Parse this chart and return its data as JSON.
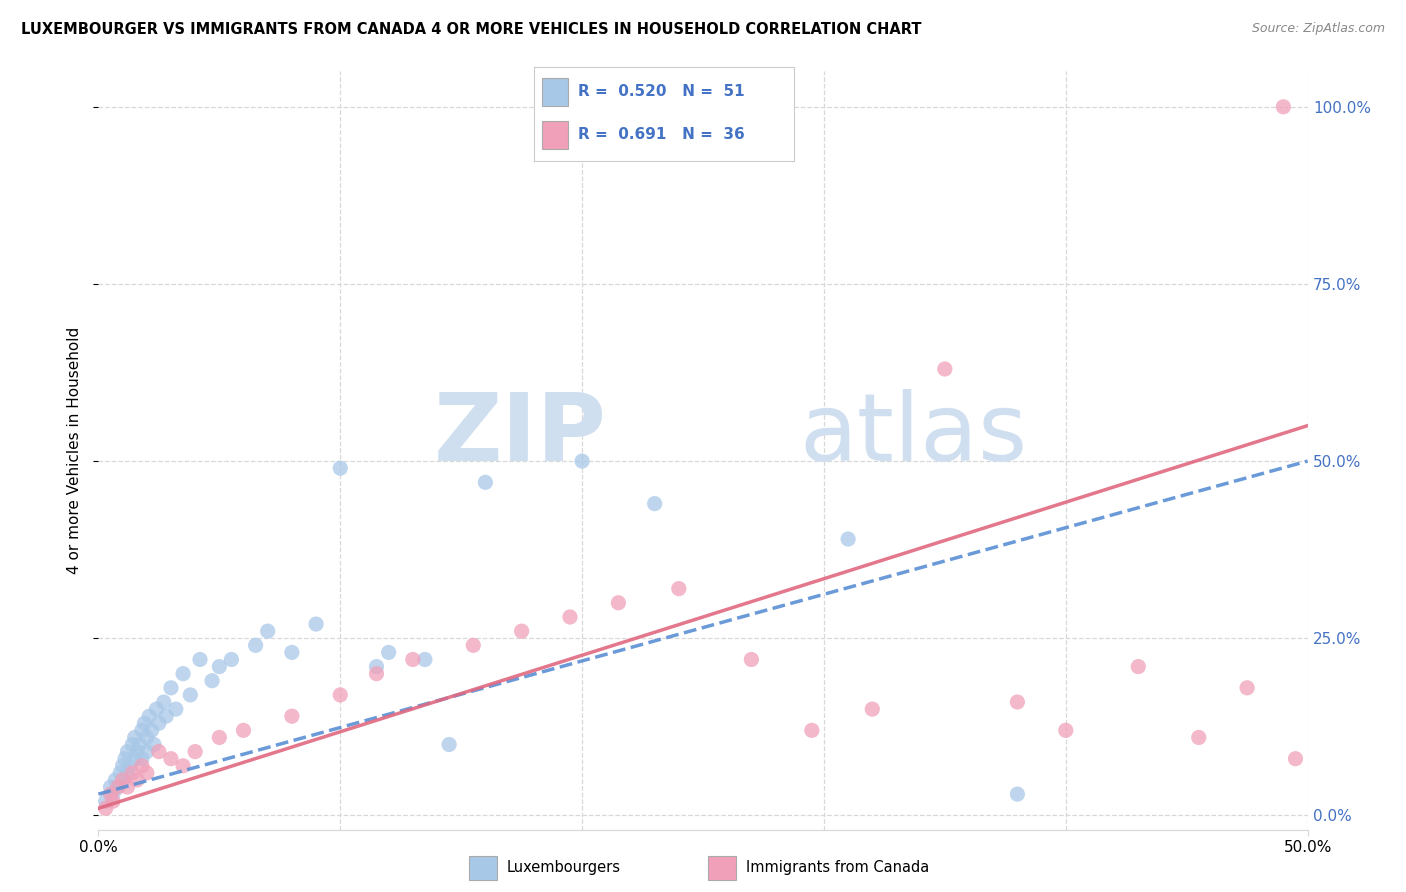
{
  "title": "LUXEMBOURGER VS IMMIGRANTS FROM CANADA 4 OR MORE VEHICLES IN HOUSEHOLD CORRELATION CHART",
  "source": "Source: ZipAtlas.com",
  "ylabel": "4 or more Vehicles in Household",
  "xlim": [
    0.0,
    0.5
  ],
  "ylim": [
    -0.02,
    1.05
  ],
  "ytick_labels": [
    "0.0%",
    "25.0%",
    "50.0%",
    "75.0%",
    "100.0%"
  ],
  "ytick_positions": [
    0.0,
    0.25,
    0.5,
    0.75,
    1.0
  ],
  "xtick_positions": [
    0.0,
    0.5
  ],
  "xtick_labels": [
    "0.0%",
    "50.0%"
  ],
  "legend_R1": "0.520",
  "legend_N1": "51",
  "legend_R2": "0.691",
  "legend_N2": "36",
  "color_blue": "#a8c8e8",
  "color_pink": "#f0a0b8",
  "color_blue_line": "#5b8fd4",
  "color_pink_line": "#e06880",
  "color_blue_text": "#4472c4",
  "watermark_color": "#d0dff0",
  "grid_color": "#d8d8d8",
  "blue_x": [
    0.003,
    0.005,
    0.006,
    0.007,
    0.008,
    0.009,
    0.01,
    0.01,
    0.011,
    0.012,
    0.012,
    0.013,
    0.014,
    0.015,
    0.015,
    0.016,
    0.017,
    0.018,
    0.018,
    0.019,
    0.02,
    0.02,
    0.021,
    0.022,
    0.023,
    0.024,
    0.025,
    0.027,
    0.028,
    0.03,
    0.032,
    0.035,
    0.038,
    0.042,
    0.047,
    0.05,
    0.055,
    0.065,
    0.07,
    0.08,
    0.09,
    0.1,
    0.115,
    0.12,
    0.135,
    0.145,
    0.16,
    0.2,
    0.23,
    0.31,
    0.38
  ],
  "blue_y": [
    0.02,
    0.04,
    0.03,
    0.05,
    0.04,
    0.06,
    0.07,
    0.05,
    0.08,
    0.06,
    0.09,
    0.07,
    0.1,
    0.08,
    0.11,
    0.09,
    0.1,
    0.12,
    0.08,
    0.13,
    0.11,
    0.09,
    0.14,
    0.12,
    0.1,
    0.15,
    0.13,
    0.16,
    0.14,
    0.18,
    0.15,
    0.2,
    0.17,
    0.22,
    0.19,
    0.21,
    0.22,
    0.24,
    0.26,
    0.23,
    0.27,
    0.49,
    0.21,
    0.23,
    0.22,
    0.1,
    0.47,
    0.5,
    0.44,
    0.39,
    0.03
  ],
  "pink_x": [
    0.003,
    0.005,
    0.006,
    0.008,
    0.01,
    0.012,
    0.014,
    0.016,
    0.018,
    0.02,
    0.025,
    0.03,
    0.035,
    0.04,
    0.05,
    0.06,
    0.08,
    0.1,
    0.115,
    0.13,
    0.155,
    0.175,
    0.195,
    0.215,
    0.24,
    0.27,
    0.295,
    0.32,
    0.35,
    0.38,
    0.4,
    0.43,
    0.455,
    0.475,
    0.49,
    0.495
  ],
  "pink_y": [
    0.01,
    0.03,
    0.02,
    0.04,
    0.05,
    0.04,
    0.06,
    0.05,
    0.07,
    0.06,
    0.09,
    0.08,
    0.07,
    0.09,
    0.11,
    0.12,
    0.14,
    0.17,
    0.2,
    0.22,
    0.24,
    0.26,
    0.28,
    0.3,
    0.32,
    0.22,
    0.12,
    0.15,
    0.63,
    0.16,
    0.12,
    0.21,
    0.11,
    0.18,
    1.0,
    0.08
  ]
}
